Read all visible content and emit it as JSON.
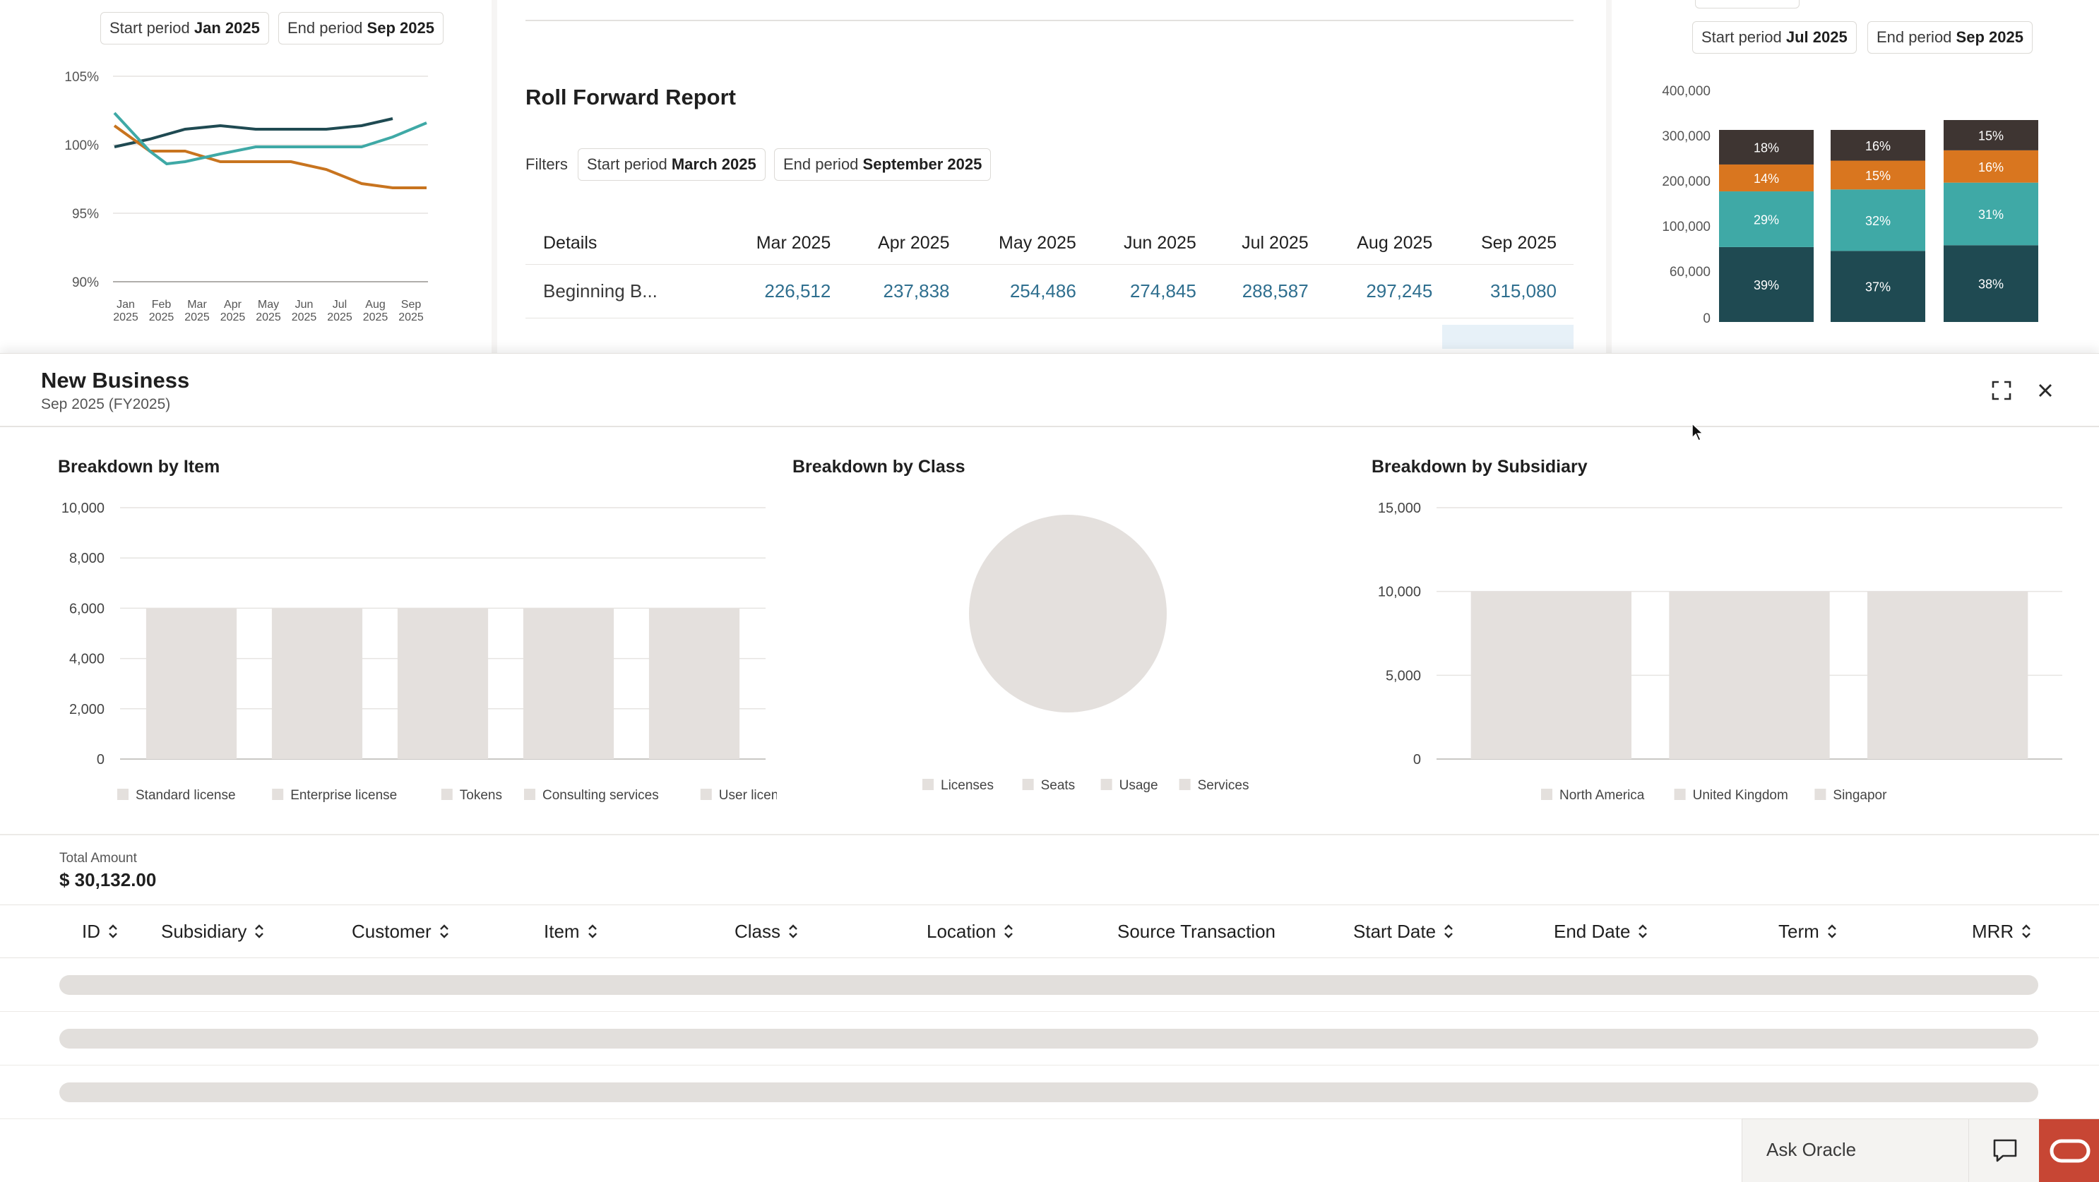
{
  "top_left": {
    "start_chip": {
      "label": "Start period",
      "value": "Jan 2025"
    },
    "end_chip": {
      "label": "End period",
      "value": "Sep 2025"
    },
    "y_ticks": [
      "105%",
      "100%",
      "95%",
      "90%"
    ],
    "x_ticks": [
      [
        "Jan",
        "2025"
      ],
      [
        "Feb",
        "2025"
      ],
      [
        "Mar",
        "2025"
      ],
      [
        "Apr",
        "2025"
      ],
      [
        "May",
        "2025"
      ],
      [
        "Jun",
        "2025"
      ],
      [
        "Jul",
        "2025"
      ],
      [
        "Aug",
        "2025"
      ],
      [
        "Sep",
        "2025"
      ]
    ],
    "colors": {
      "dark": "#1f4a52",
      "teal": "#3fa9a6",
      "orange": "#c8741f"
    }
  },
  "roll_forward": {
    "title": "Roll Forward Report",
    "filters_label": "Filters",
    "start_chip": {
      "label": "Start period",
      "value": "March 2025"
    },
    "end_chip": {
      "label": "End period",
      "value": "September 2025"
    },
    "columns": [
      "Details",
      "Mar 2025",
      "Apr 2025",
      "May 2025",
      "Jun 2025",
      "Jul 2025",
      "Aug 2025",
      "Sep 2025"
    ],
    "rows": [
      [
        "Beginning B...",
        "226,512",
        "237,838",
        "254,486",
        "274,845",
        "288,587",
        "297,245",
        "315,080"
      ]
    ]
  },
  "top_right": {
    "start_chip": {
      "label": "Start period",
      "value": "Jul 2025"
    },
    "end_chip": {
      "label": "End period",
      "value": "Sep 2025"
    },
    "y_ticks": [
      "400,000",
      "300,000",
      "200,000",
      "100,000",
      "60,000",
      "0"
    ],
    "segment_colors": [
      "#1f4a52",
      "#3fa9a6",
      "#d9761f",
      "#3e3532"
    ],
    "bars": [
      {
        "labels": [
          "39%",
          "29%",
          "14%",
          "18%"
        ]
      },
      {
        "labels": [
          "37%",
          "32%",
          "15%",
          "16%"
        ]
      },
      {
        "labels": [
          "38%",
          "31%",
          "16%",
          "15%"
        ]
      }
    ]
  },
  "panel": {
    "title": "New Business",
    "subtitle": "Sep 2025 (FY2025)",
    "total_label": "Total Amount",
    "total_value": "$ 30,132.00",
    "grid_columns": [
      "ID",
      "Subsidiary",
      "Customer",
      "Item",
      "Class",
      "Location",
      "Source Transaction",
      "Start Date",
      "End Date",
      "Term",
      "MRR"
    ],
    "sortable": [
      true,
      true,
      true,
      true,
      true,
      true,
      false,
      true,
      true,
      true,
      true
    ]
  },
  "chart_data": [
    {
      "type": "bar",
      "title": "Breakdown by Item",
      "categories": [
        "Standard license",
        "Enterprise license",
        "Tokens",
        "Consulting services",
        "User license"
      ],
      "values": [
        6000,
        6000,
        6000,
        6000,
        6000
      ],
      "y_ticks": [
        "10,000",
        "8,000",
        "6,000",
        "4,000",
        "2,000",
        "0"
      ],
      "ylim": [
        0,
        10000
      ],
      "legend": [
        "Standard license",
        "Enterprise license",
        "Tokens",
        "Consulting services",
        "User license"
      ],
      "legend_position": "bottom",
      "grid": true,
      "state": "loading"
    },
    {
      "type": "pie",
      "title": "Breakdown by Class",
      "legend": [
        "Licenses",
        "Seats",
        "Usage",
        "Services"
      ],
      "legend_position": "bottom",
      "state": "loading"
    },
    {
      "type": "bar",
      "title": "Breakdown by Subsidiary",
      "categories": [
        "North America",
        "United Kingdom",
        "Singapor"
      ],
      "values": [
        10000,
        10000,
        10000
      ],
      "y_ticks": [
        "15,000",
        "10,000",
        "5,000",
        "0"
      ],
      "ylim": [
        0,
        15000
      ],
      "legend": [
        "North America",
        "United Kingdom",
        "Singapor"
      ],
      "legend_position": "bottom",
      "grid": true,
      "state": "loading"
    }
  ],
  "ask_oracle": {
    "placeholder": "Ask Oracle"
  }
}
